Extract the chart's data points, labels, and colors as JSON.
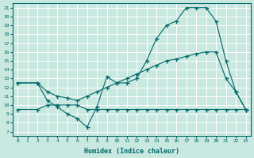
{
  "xlabel": "Humidex (Indice chaleur)",
  "bg_color": "#c8e8e0",
  "grid_color": "#ffffff",
  "line_color": "#006868",
  "xlim": [
    -0.5,
    23.5
  ],
  "ylim": [
    6.5,
    21.5
  ],
  "xticks": [
    0,
    1,
    2,
    3,
    4,
    5,
    6,
    7,
    8,
    9,
    10,
    11,
    12,
    13,
    14,
    15,
    16,
    17,
    18,
    19,
    20,
    21,
    22,
    23
  ],
  "yticks": [
    7,
    8,
    9,
    10,
    11,
    12,
    13,
    14,
    15,
    16,
    17,
    18,
    19,
    20,
    21
  ],
  "line1_x": [
    0,
    2,
    3,
    4,
    5,
    6,
    7,
    8,
    9,
    10,
    11,
    12,
    13,
    14,
    15,
    16,
    17,
    18,
    19,
    20,
    21,
    22,
    23
  ],
  "line1_y": [
    12.5,
    12.5,
    10.5,
    9.8,
    9.0,
    8.5,
    7.5,
    9.8,
    13.2,
    12.5,
    12.5,
    13.0,
    15.0,
    17.5,
    19.0,
    19.5,
    21.0,
    21.0,
    21.0,
    19.5,
    15.0,
    11.5,
    9.5
  ],
  "line2_x": [
    0,
    2,
    3,
    4,
    5,
    6,
    7,
    8,
    9,
    10,
    11,
    12,
    13,
    14,
    15,
    16,
    17,
    18,
    19,
    20,
    21,
    22,
    23
  ],
  "line2_y": [
    12.5,
    12.5,
    11.5,
    11.0,
    10.8,
    10.5,
    11.0,
    11.5,
    12.0,
    12.5,
    13.0,
    13.5,
    14.0,
    14.5,
    15.0,
    15.2,
    15.5,
    15.8,
    16.0,
    16.0,
    13.0,
    11.5,
    9.5
  ],
  "line3_x": [
    0,
    2,
    3,
    4,
    5,
    6,
    7,
    8,
    9,
    10,
    11,
    12,
    13,
    14,
    15,
    16,
    17,
    18,
    19,
    20,
    21,
    22,
    23
  ],
  "line3_y": [
    9.5,
    9.5,
    10.0,
    10.0,
    10.0,
    10.0,
    9.5,
    9.5,
    9.5,
    9.5,
    9.5,
    9.5,
    9.5,
    9.5,
    9.5,
    9.5,
    9.5,
    9.5,
    9.5,
    9.5,
    9.5,
    9.5,
    9.5
  ]
}
